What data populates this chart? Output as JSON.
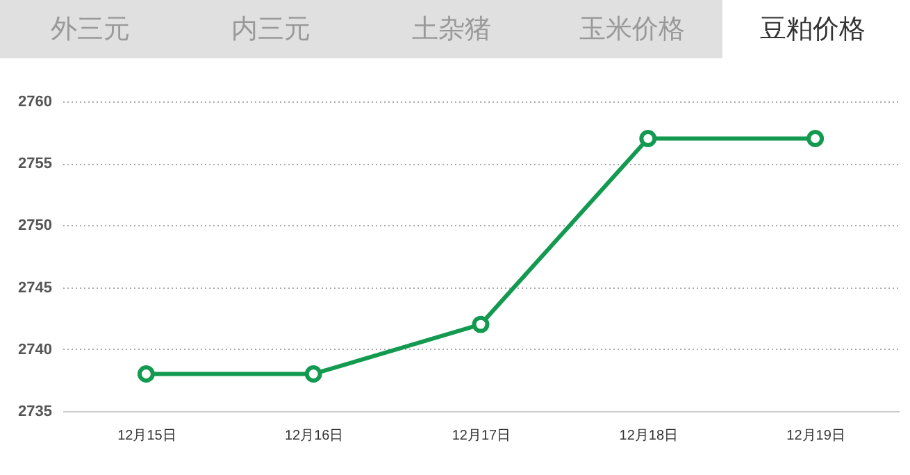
{
  "chart_data": {
    "type": "line",
    "title": "豆粕价格",
    "annotations": [
      "外三元",
      "内三元",
      "土杂猪",
      "玉米价格"
    ],
    "categories": [
      "12月15日",
      "12月16日",
      "12月17日",
      "12月18日",
      "12月19日"
    ],
    "series": [
      {
        "color": "#139a50",
        "values": [
          2738,
          2738,
          2742,
          2757,
          2757
        ]
      }
    ],
    "ylim": [
      2735,
      2760
    ],
    "yticks": [
      2735,
      2740,
      2745,
      2750,
      2755,
      2760
    ],
    "grid": "y",
    "marker": "circle",
    "line_style": "solid",
    "legend": false
  }
}
